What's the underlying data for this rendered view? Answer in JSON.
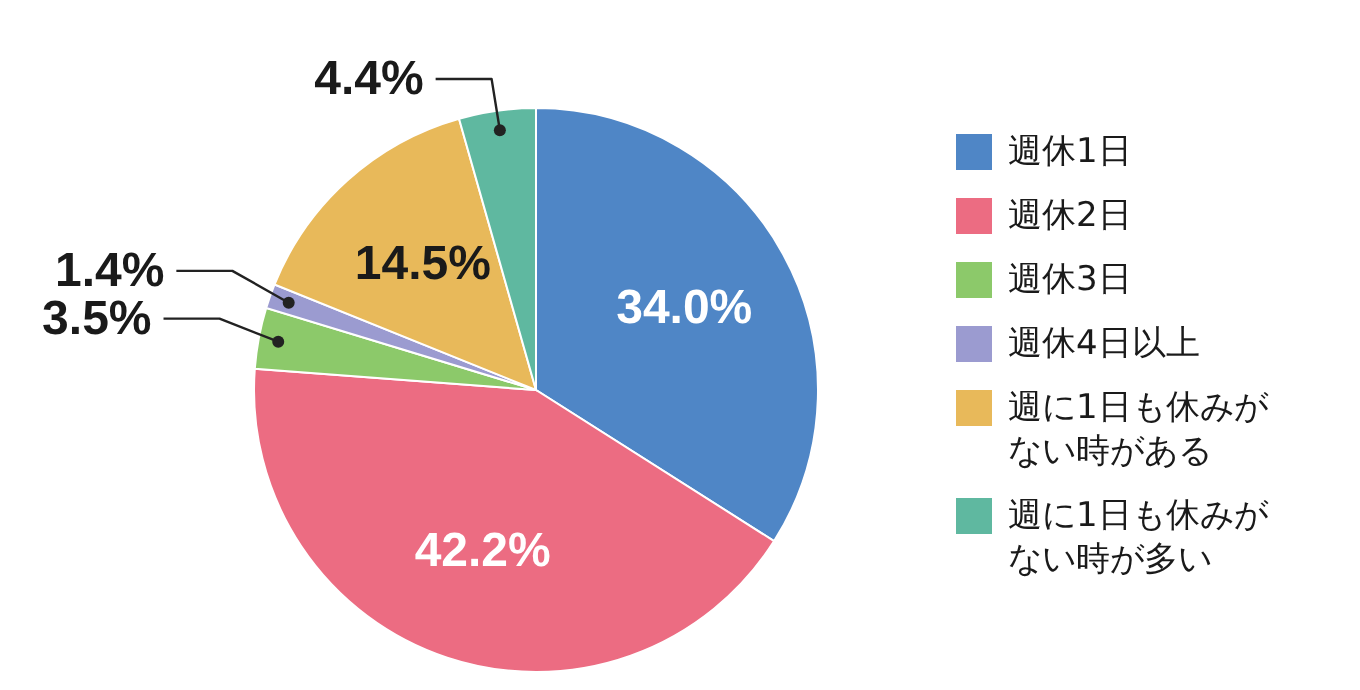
{
  "chart_data": {
    "type": "pie",
    "categories": [
      "週休1日",
      "週休2日",
      "週休3日",
      "週休4日以上",
      "週に1日も休みがない時がある",
      "週に1日も休みがない時が多い"
    ],
    "values": [
      34.0,
      42.2,
      3.5,
      1.4,
      14.5,
      4.4
    ],
    "colors": [
      "#4f86c6",
      "#ec6c82",
      "#8cc96a",
      "#9b9bd0",
      "#e8b95a",
      "#5fb8a0"
    ],
    "value_labels": [
      "34.0%",
      "42.2%",
      "3.5%",
      "1.4%",
      "14.5%",
      "4.4%"
    ],
    "legend": "right"
  }
}
